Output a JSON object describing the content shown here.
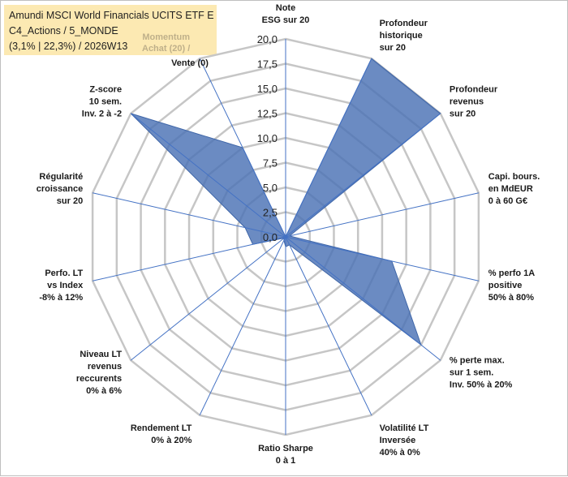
{
  "title": {
    "line1": "Amundi MSCI World Financials UCITS ETF E",
    "line2": "C4_Actions / 5_MONDE",
    "line3": "(3,1% | 22,3%) / 2026W13",
    "momentum_line1": "Momentum",
    "momentum_line2": "Achat (20) /"
  },
  "chart_data": {
    "type": "radar",
    "title": "Amundi MSCI World Financials UCITS ETF E",
    "rmin": 0,
    "rmax": 20,
    "ticks": [
      "0,0",
      "2,5",
      "5,0",
      "7,5",
      "10,0",
      "12,5",
      "15,0",
      "17,5",
      "20,0"
    ],
    "series": [
      {
        "name": "Score",
        "color": "#4a72b5",
        "values": [
          0,
          20,
          20,
          0.4,
          11,
          17.5,
          0.9,
          1,
          0.4,
          0.2,
          3.4,
          4.2,
          20,
          10
        ]
      }
    ],
    "axes": [
      [
        "Note",
        "ESG sur 20"
      ],
      [
        "Profondeur",
        "historique",
        "sur 20"
      ],
      [
        "Profondeur",
        "revenus",
        "sur 20"
      ],
      [
        "Capi. bours.",
        "en MdEUR",
        "0 à 60 G€"
      ],
      [
        "% perfo 1A",
        "positive",
        "50% à 80%"
      ],
      [
        "% perte max.",
        "sur 1 sem.",
        "Inv. 50% à 20%"
      ],
      [
        "Volatilité LT",
        "Inversée",
        "40% à 0%"
      ],
      [
        "Ratio Sharpe",
        "0 à 1"
      ],
      [
        "Rendement LT",
        "0% à 20%"
      ],
      [
        "Niveau LT",
        "revenus",
        "reccurents",
        "0% à 6%"
      ],
      [
        "Perfo. LT",
        "vs Index",
        "-8% à 12%"
      ],
      [
        "Régularité",
        "croissance",
        "sur 20"
      ],
      [
        "Z-score",
        "10 sem.",
        "Inv. 2 à -2"
      ],
      [
        "Vente (0)"
      ]
    ]
  }
}
